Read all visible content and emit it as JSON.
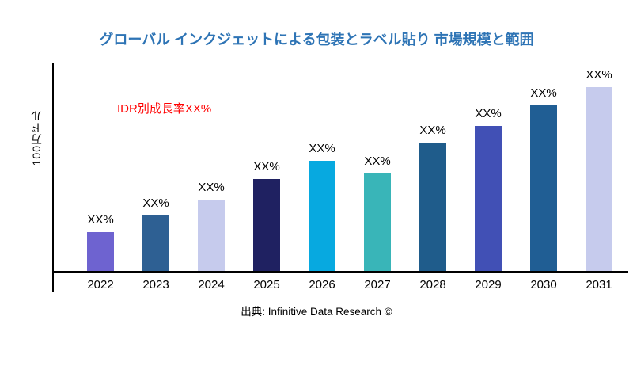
{
  "title": "グローバル インクジェットによる包装とラベル貼り 市場規模と範囲",
  "annotation": "IDR別成長率XX%",
  "source": "出典: Infinitive Data Research ©",
  "colors": {
    "title": "#2E74B5",
    "annotation": "#FF0000",
    "axis": "#000000"
  },
  "chart_data": {
    "type": "bar",
    "title": "グローバル インクジェットによる包装とラベル貼り 市場規模と範囲",
    "xlabel": "",
    "ylabel": "100万ドル",
    "categories": [
      "2022",
      "2023",
      "2024",
      "2025",
      "2026",
      "2027",
      "2028",
      "2029",
      "2030",
      "2031"
    ],
    "values": [
      21,
      30,
      39,
      50,
      60,
      53,
      70,
      79,
      90,
      100
    ],
    "value_labels": [
      "XX%",
      "XX%",
      "XX%",
      "XX%",
      "XX%",
      "XX%",
      "XX%",
      "XX%",
      "XX%",
      "XX%"
    ],
    "colors": [
      "#6E63D0",
      "#2E6093",
      "#C6CBED",
      "#1F2161",
      "#07A9E0",
      "#39B5B8",
      "#1F5C8B",
      "#4150B5",
      "#205E94",
      "#C6CBED"
    ],
    "ylim": [
      0,
      113
    ],
    "grid": false,
    "legend": null,
    "annotations": [
      "IDR別成長率XX%"
    ]
  }
}
